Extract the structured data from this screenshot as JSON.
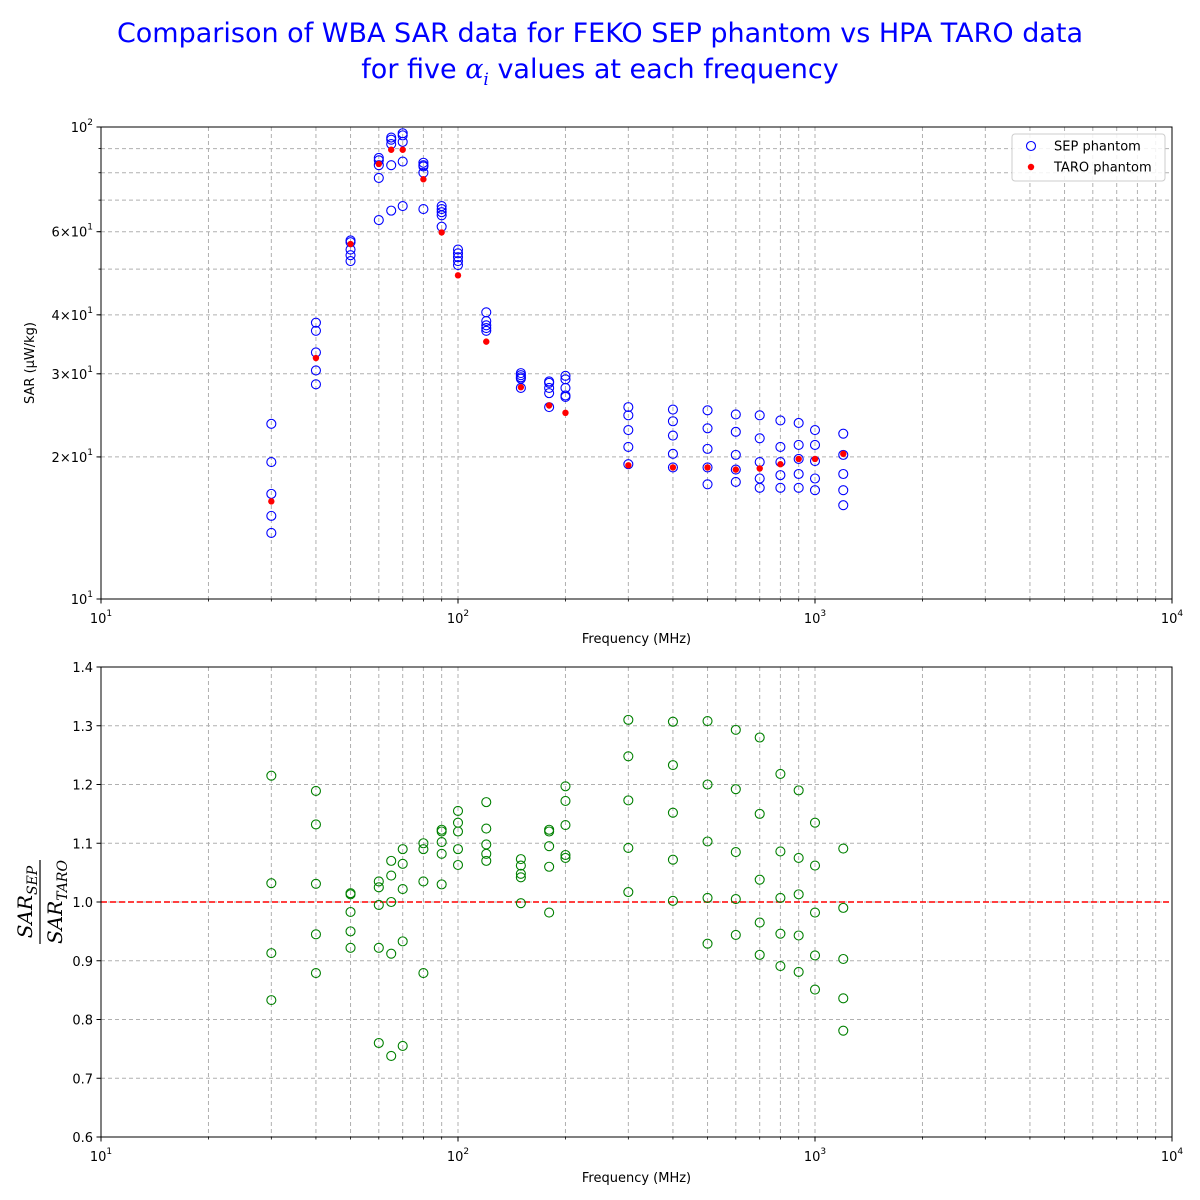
{
  "title": {
    "line1": "Comparison of WBA SAR data for FEKO SEP phantom vs HPA TARO data",
    "line2_before": "for five ",
    "line2_symbol": "α",
    "line2_subscript": "i",
    "line2_after": " values at each frequency"
  },
  "colors": {
    "title": "#0000ff",
    "sep": "#0000ff",
    "taro": "#ff0000",
    "ratio": "#008000",
    "reference_line": "#ff0000",
    "grid": "#b0b0b0"
  },
  "chart_data": [
    {
      "type": "scatter",
      "xscale": "log",
      "yscale": "log",
      "xlabel": "Frequency (MHz)",
      "ylabel": "SAR (μW/kg)",
      "xlim": [
        10,
        10000
      ],
      "ylim": [
        10,
        100
      ],
      "grid": true,
      "legend_placement": "top-right",
      "x_tick_labels": [
        {
          "value": 10,
          "base": "10",
          "exp": "1"
        },
        {
          "value": 100,
          "base": "10",
          "exp": "2"
        },
        {
          "value": 1000,
          "base": "10",
          "exp": "3"
        },
        {
          "value": 10000,
          "base": "10",
          "exp": "4"
        }
      ],
      "y_tick_labels": [
        {
          "value": 10,
          "base": "10",
          "exp": "1"
        },
        {
          "value": 20,
          "base": "2×10",
          "exp": "1"
        },
        {
          "value": 30,
          "base": "3×10",
          "exp": "1"
        },
        {
          "value": 40,
          "base": "4×10",
          "exp": "1"
        },
        {
          "value": 60,
          "base": "6×10",
          "exp": "1"
        },
        {
          "value": 100,
          "base": "10",
          "exp": "2"
        }
      ],
      "series": [
        {
          "name": "SEP phantom",
          "marker": "open-circle",
          "points": [
            [
              30,
              23.5
            ],
            [
              30,
              19.5
            ],
            [
              30,
              16.7
            ],
            [
              30,
              15
            ],
            [
              30,
              13.8
            ],
            [
              40,
              38.5
            ],
            [
              40,
              37
            ],
            [
              40,
              33.3
            ],
            [
              40,
              30.5
            ],
            [
              40,
              28.5
            ],
            [
              50,
              57.5
            ],
            [
              50,
              57
            ],
            [
              50,
              55
            ],
            [
              50,
              53.5
            ],
            [
              50,
              52
            ],
            [
              60,
              86
            ],
            [
              60,
              85
            ],
            [
              60,
              83
            ],
            [
              60,
              78
            ],
            [
              60,
              63.5
            ],
            [
              65,
              95
            ],
            [
              65,
              94
            ],
            [
              65,
              92
            ],
            [
              65,
              83
            ],
            [
              65,
              66.5
            ],
            [
              70,
              97
            ],
            [
              70,
              96
            ],
            [
              70,
              93
            ],
            [
              70,
              84.5
            ],
            [
              70,
              68
            ],
            [
              80,
              84
            ],
            [
              80,
              83
            ],
            [
              80,
              82.5
            ],
            [
              80,
              80
            ],
            [
              80,
              67
            ],
            [
              90,
              68
            ],
            [
              90,
              67
            ],
            [
              90,
              66
            ],
            [
              90,
              65
            ],
            [
              90,
              61.5
            ],
            [
              100,
              55
            ],
            [
              100,
              54
            ],
            [
              100,
              53
            ],
            [
              100,
              52
            ],
            [
              100,
              51
            ],
            [
              120,
              40.5
            ],
            [
              120,
              38.8
            ],
            [
              120,
              38
            ],
            [
              120,
              37.5
            ],
            [
              120,
              37
            ],
            [
              150,
              30.1
            ],
            [
              150,
              29.8
            ],
            [
              150,
              29.5
            ],
            [
              150,
              29.3
            ],
            [
              150,
              28
            ],
            [
              180,
              28.9
            ],
            [
              180,
              28.7
            ],
            [
              180,
              28
            ],
            [
              180,
              27.3
            ],
            [
              180,
              25.5
            ],
            [
              200,
              29.7
            ],
            [
              200,
              29.2
            ],
            [
              200,
              28
            ],
            [
              200,
              27
            ],
            [
              200,
              26.8
            ],
            [
              300,
              25.5
            ],
            [
              300,
              24.5
            ],
            [
              300,
              22.8
            ],
            [
              300,
              21
            ],
            [
              300,
              19.3
            ],
            [
              400,
              25.2
            ],
            [
              400,
              23.8
            ],
            [
              400,
              22.2
            ],
            [
              400,
              20.3
            ],
            [
              400,
              19
            ],
            [
              500,
              25.1
            ],
            [
              500,
              23
            ],
            [
              500,
              20.8
            ],
            [
              500,
              19
            ],
            [
              500,
              17.5
            ],
            [
              600,
              24.6
            ],
            [
              600,
              22.6
            ],
            [
              600,
              20.2
            ],
            [
              600,
              18.8
            ],
            [
              600,
              17.7
            ],
            [
              700,
              24.5
            ],
            [
              700,
              21.9
            ],
            [
              700,
              19.5
            ],
            [
              700,
              18
            ],
            [
              700,
              17.2
            ],
            [
              800,
              23.9
            ],
            [
              800,
              21
            ],
            [
              800,
              19.5
            ],
            [
              800,
              18.3
            ],
            [
              800,
              17.2
            ],
            [
              900,
              23.6
            ],
            [
              900,
              21.2
            ],
            [
              900,
              19.8
            ],
            [
              900,
              18.4
            ],
            [
              900,
              17.2
            ],
            [
              1000,
              22.8
            ],
            [
              1000,
              21.2
            ],
            [
              1000,
              19.6
            ],
            [
              1000,
              18
            ],
            [
              1000,
              17
            ],
            [
              1200,
              22.4
            ],
            [
              1200,
              20.2
            ],
            [
              1200,
              18.4
            ],
            [
              1200,
              17
            ],
            [
              1200,
              15.8
            ]
          ]
        },
        {
          "name": "TARO phantom",
          "marker": "filled-dot",
          "points": [
            [
              30,
              16.1
            ],
            [
              40,
              32.4
            ],
            [
              50,
              56.5
            ],
            [
              60,
              83.5
            ],
            [
              65,
              89.5
            ],
            [
              70,
              89.5
            ],
            [
              80,
              77.5
            ],
            [
              90,
              59.8
            ],
            [
              100,
              48.5
            ],
            [
              120,
              35.1
            ],
            [
              150,
              28.1
            ],
            [
              180,
              25.7
            ],
            [
              200,
              24.8
            ],
            [
              300,
              19.2
            ],
            [
              400,
              19
            ],
            [
              500,
              19
            ],
            [
              600,
              18.8
            ],
            [
              700,
              18.9
            ],
            [
              800,
              19.3
            ],
            [
              900,
              19.8
            ],
            [
              1000,
              19.8
            ],
            [
              1200,
              20.3
            ]
          ]
        }
      ]
    },
    {
      "type": "scatter",
      "xscale": "log",
      "yscale": "linear",
      "xlabel": "Frequency (MHz)",
      "ylabel": {
        "num_base": "SAR",
        "num_sub": "SEP",
        "den_base": "SAR",
        "den_sub": "TARO"
      },
      "xlim": [
        10,
        10000
      ],
      "ylim": [
        0.6,
        1.4
      ],
      "grid": true,
      "reference_line": 1.0,
      "x_tick_labels": [
        {
          "value": 10,
          "base": "10",
          "exp": "1"
        },
        {
          "value": 100,
          "base": "10",
          "exp": "2"
        },
        {
          "value": 1000,
          "base": "10",
          "exp": "3"
        },
        {
          "value": 10000,
          "base": "10",
          "exp": "4"
        }
      ],
      "y_ticks": [
        "0.6",
        "0.7",
        "0.8",
        "0.9",
        "1.0",
        "1.1",
        "1.2",
        "1.3",
        "1.4"
      ],
      "series": [
        {
          "marker": "open-circle",
          "points": [
            [
              30,
              1.215
            ],
            [
              30,
              1.032
            ],
            [
              30,
              0.913
            ],
            [
              30,
              0.833
            ],
            [
              40,
              1.189
            ],
            [
              40,
              1.132
            ],
            [
              40,
              1.031
            ],
            [
              40,
              0.945
            ],
            [
              40,
              0.879
            ],
            [
              50,
              1.015
            ],
            [
              50,
              1.013
            ],
            [
              50,
              0.983
            ],
            [
              50,
              0.95
            ],
            [
              50,
              0.922
            ],
            [
              60,
              1.035
            ],
            [
              60,
              1.025
            ],
            [
              60,
              0.995
            ],
            [
              60,
              0.922
            ],
            [
              60,
              0.76
            ],
            [
              65,
              1.07
            ],
            [
              65,
              1.045
            ],
            [
              65,
              1.0
            ],
            [
              65,
              0.912
            ],
            [
              65,
              0.738
            ],
            [
              70,
              1.09
            ],
            [
              70,
              1.065
            ],
            [
              70,
              1.022
            ],
            [
              70,
              0.933
            ],
            [
              70,
              0.755
            ],
            [
              80,
              1.1
            ],
            [
              80,
              1.09
            ],
            [
              80,
              1.035
            ],
            [
              80,
              0.879
            ],
            [
              90,
              1.123
            ],
            [
              90,
              1.12
            ],
            [
              90,
              1.102
            ],
            [
              90,
              1.082
            ],
            [
              90,
              1.03
            ],
            [
              100,
              1.155
            ],
            [
              100,
              1.135
            ],
            [
              100,
              1.12
            ],
            [
              100,
              1.09
            ],
            [
              100,
              1.063
            ],
            [
              120,
              1.17
            ],
            [
              120,
              1.125
            ],
            [
              120,
              1.098
            ],
            [
              120,
              1.082
            ],
            [
              120,
              1.07
            ],
            [
              150,
              1.073
            ],
            [
              150,
              1.062
            ],
            [
              150,
              1.048
            ],
            [
              150,
              1.042
            ],
            [
              150,
              0.998
            ],
            [
              180,
              1.123
            ],
            [
              180,
              1.12
            ],
            [
              180,
              1.095
            ],
            [
              180,
              1.06
            ],
            [
              180,
              0.982
            ],
            [
              200,
              1.197
            ],
            [
              200,
              1.172
            ],
            [
              200,
              1.131
            ],
            [
              200,
              1.08
            ],
            [
              200,
              1.075
            ],
            [
              300,
              1.31
            ],
            [
              300,
              1.248
            ],
            [
              300,
              1.173
            ],
            [
              300,
              1.092
            ],
            [
              300,
              1.017
            ],
            [
              400,
              1.307
            ],
            [
              400,
              1.233
            ],
            [
              400,
              1.152
            ],
            [
              400,
              1.072
            ],
            [
              400,
              1.002
            ],
            [
              500,
              1.308
            ],
            [
              500,
              1.2
            ],
            [
              500,
              1.103
            ],
            [
              500,
              1.007
            ],
            [
              500,
              0.929
            ],
            [
              600,
              1.293
            ],
            [
              600,
              1.192
            ],
            [
              600,
              1.085
            ],
            [
              600,
              1.005
            ],
            [
              600,
              0.944
            ],
            [
              700,
              1.28
            ],
            [
              700,
              1.15
            ],
            [
              700,
              1.038
            ],
            [
              700,
              0.965
            ],
            [
              700,
              0.91
            ],
            [
              800,
              1.218
            ],
            [
              800,
              1.086
            ],
            [
              800,
              1.007
            ],
            [
              800,
              0.946
            ],
            [
              800,
              0.891
            ],
            [
              900,
              1.19
            ],
            [
              900,
              1.075
            ],
            [
              900,
              1.013
            ],
            [
              900,
              0.943
            ],
            [
              900,
              0.881
            ],
            [
              1000,
              1.135
            ],
            [
              1000,
              1.062
            ],
            [
              1000,
              0.982
            ],
            [
              1000,
              0.909
            ],
            [
              1000,
              0.851
            ],
            [
              1200,
              1.091
            ],
            [
              1200,
              0.99
            ],
            [
              1200,
              0.903
            ],
            [
              1200,
              0.836
            ],
            [
              1200,
              0.781
            ]
          ]
        }
      ]
    }
  ]
}
